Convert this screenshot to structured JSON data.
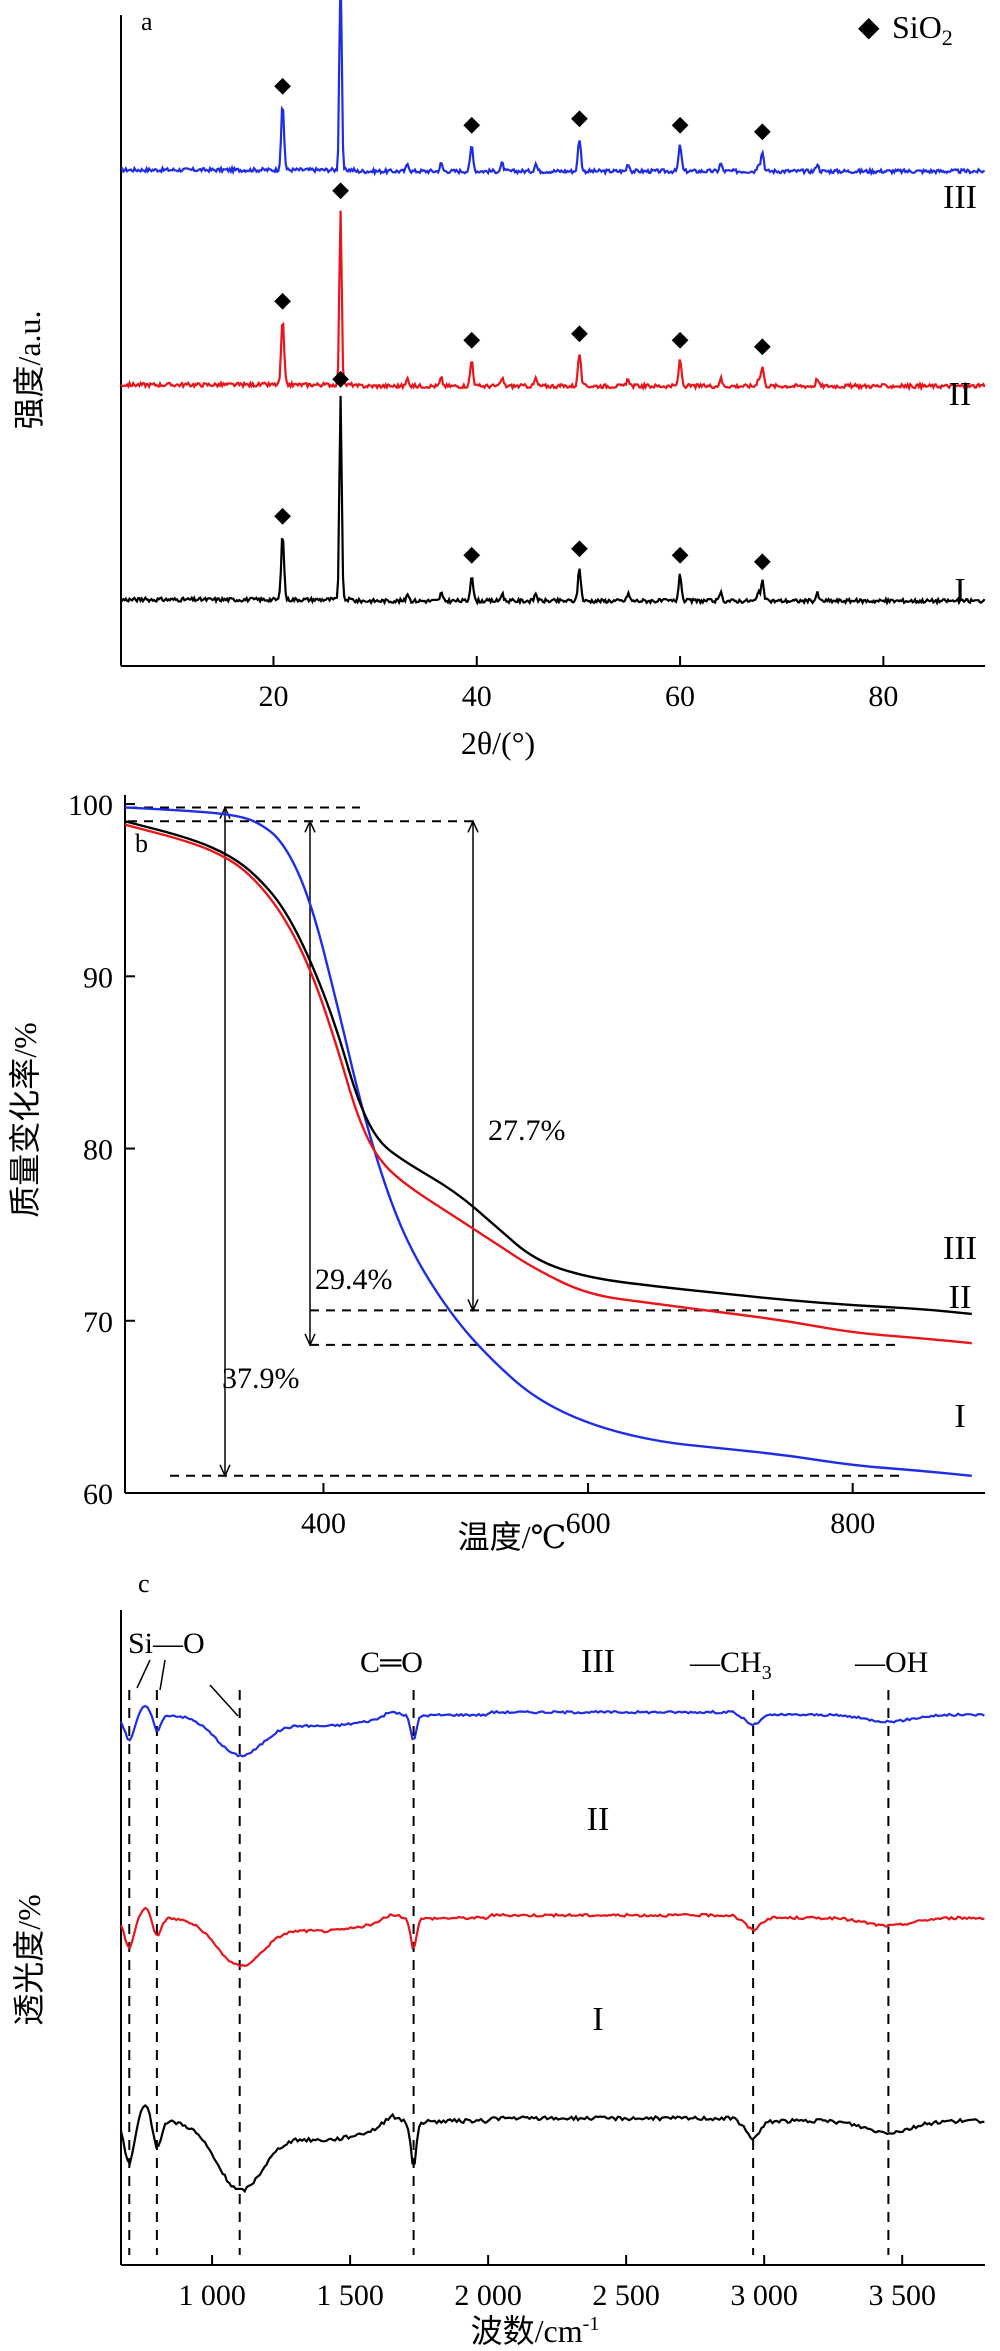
{
  "chart_data": [
    {
      "panel": "a",
      "type": "line",
      "xlabel": "2θ/(°)",
      "ylabel": "强度/a.u.",
      "xlim": [
        5,
        90
      ],
      "xticks": [
        "20",
        "40",
        "60",
        "80"
      ],
      "legend": {
        "marker": "◆",
        "label": "SiO₂",
        "position": "top-right"
      },
      "peak_positions": [
        20.9,
        26.6,
        39.5,
        50.1,
        60.0,
        68.1
      ],
      "series": [
        {
          "name": "III",
          "color": "#1f2de6",
          "baseline": 0.76,
          "peak_heights": [
            0.1,
            0.31,
            0.04,
            0.05,
            0.04,
            0.03
          ]
        },
        {
          "name": "II",
          "color": "#e8161b",
          "baseline": 0.43,
          "peak_heights": [
            0.1,
            0.27,
            0.04,
            0.05,
            0.04,
            0.03
          ]
        },
        {
          "name": "I",
          "color": "#000000",
          "baseline": 0.1,
          "peak_heights": [
            0.1,
            0.31,
            0.04,
            0.05,
            0.04,
            0.03
          ]
        }
      ]
    },
    {
      "panel": "b",
      "type": "line",
      "xlabel": "温度/℃",
      "ylabel": "质量变化率/%",
      "xlim": [
        250,
        900
      ],
      "ylim": [
        60,
        100
      ],
      "xticks": [
        "400",
        "600",
        "800"
      ],
      "yticks": [
        "60",
        "70",
        "80",
        "90",
        "100"
      ],
      "series": [
        {
          "name": "I",
          "color": "#1f2de6",
          "mass_loss": "37.9%",
          "points": [
            [
              250,
              99.8
            ],
            [
              300,
              99.6
            ],
            [
              330,
              99.4
            ],
            [
              350,
              99.0
            ],
            [
              370,
              97.8
            ],
            [
              390,
              94.5
            ],
            [
              410,
              88.5
            ],
            [
              430,
              82.0
            ],
            [
              450,
              77.0
            ],
            [
              470,
              73.5
            ],
            [
              500,
              70.0
            ],
            [
              530,
              67.5
            ],
            [
              560,
              65.5
            ],
            [
              600,
              64.0
            ],
            [
              650,
              63.0
            ],
            [
              700,
              62.6
            ],
            [
              750,
              62.2
            ],
            [
              800,
              61.6
            ],
            [
              850,
              61.3
            ],
            [
              890,
              61.0
            ]
          ]
        },
        {
          "name": "II",
          "color": "#e8161b",
          "mass_loss": "29.4%",
          "points": [
            [
              250,
              98.8
            ],
            [
              300,
              97.8
            ],
            [
              330,
              96.8
            ],
            [
              350,
              95.5
            ],
            [
              370,
              93.5
            ],
            [
              390,
              90.5
            ],
            [
              410,
              86.0
            ],
            [
              425,
              82.0
            ],
            [
              440,
              79.5
            ],
            [
              460,
              78.0
            ],
            [
              500,
              76.0
            ],
            [
              530,
              74.5
            ],
            [
              560,
              73.0
            ],
            [
              600,
              71.5
            ],
            [
              650,
              71.0
            ],
            [
              700,
              70.5
            ],
            [
              750,
              70.0
            ],
            [
              800,
              69.3
            ],
            [
              850,
              69.0
            ],
            [
              890,
              68.7
            ]
          ]
        },
        {
          "name": "III",
          "color": "#000000",
          "mass_loss": "27.7%",
          "points": [
            [
              250,
              99.0
            ],
            [
              300,
              98.0
            ],
            [
              330,
              97.0
            ],
            [
              350,
              95.8
            ],
            [
              370,
              94.0
            ],
            [
              390,
              91.0
            ],
            [
              410,
              87.0
            ],
            [
              425,
              83.0
            ],
            [
              440,
              80.5
            ],
            [
              460,
              79.3
            ],
            [
              500,
              77.5
            ],
            [
              530,
              75.5
            ],
            [
              560,
              73.5
            ],
            [
              600,
              72.5
            ],
            [
              650,
              72.0
            ],
            [
              700,
              71.6
            ],
            [
              750,
              71.2
            ],
            [
              800,
              70.9
            ],
            [
              850,
              70.7
            ],
            [
              890,
              70.4
            ]
          ]
        }
      ]
    },
    {
      "panel": "c",
      "type": "line",
      "xlabel": "波数/cm⁻¹",
      "ylabel": "透光度/%",
      "xlim": [
        670,
        3800
      ],
      "xticks": [
        "1 000",
        "1 500",
        "2 000",
        "2 500",
        "3 000",
        "3 500"
      ],
      "band_positions": [
        700,
        800,
        1100,
        1730,
        2960,
        3450
      ],
      "band_labels": [
        "Si—O",
        "C═O",
        "—CH₃",
        "—OH"
      ],
      "series": [
        {
          "name": "III",
          "color": "#1f2de6",
          "baseline": 0.84
        },
        {
          "name": "II",
          "color": "#e8161b",
          "baseline": 0.53
        },
        {
          "name": "I",
          "color": "#000000",
          "baseline": 0.22
        }
      ]
    }
  ],
  "labels": {
    "panel_a": "a",
    "panel_b": "b",
    "panel_c": "c",
    "a_xlabel": "2θ/(°)",
    "a_ylabel": "强度/a.u.",
    "a_legend_marker": "◆",
    "a_legend_text": "SiO",
    "a_legend_sub": "2",
    "b_xlabel": "温度/℃",
    "b_ylabel": "质量变化率/%",
    "c_xlabel_main": "波数/cm",
    "c_xlabel_sup": "-1",
    "c_ylabel": "透光度/%",
    "s1": "I",
    "s2": "II",
    "s3": "III",
    "loss_1": "37.9%",
    "loss_2": "29.4%",
    "loss_3": "27.7%",
    "band_sio": "Si—O",
    "band_co": "C═O",
    "band_ch3": "—CH",
    "band_ch3_sub": "3",
    "band_oh": "—OH"
  }
}
